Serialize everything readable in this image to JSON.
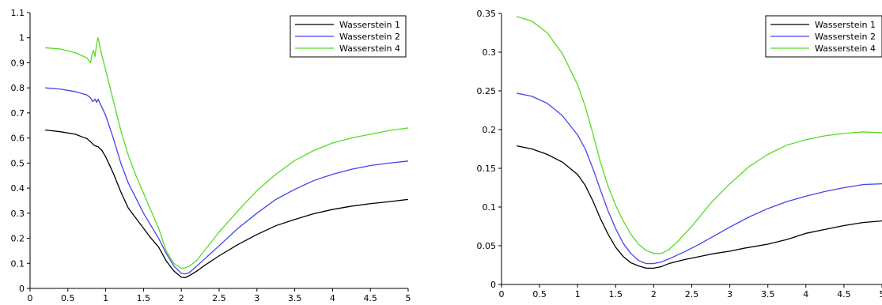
{
  "chart_data": [
    {
      "type": "line",
      "xlim": [
        0,
        5
      ],
      "ylim": [
        0,
        1.1
      ],
      "xticks": [
        "0",
        "0.5",
        "1",
        "1.5",
        "2",
        "2.5",
        "3",
        "3.5",
        "4",
        "4.5",
        "5"
      ],
      "yticks": [
        "0",
        "0.1",
        "0.2",
        "0.3",
        "0.4",
        "0.5",
        "0.6",
        "0.7",
        "0.8",
        "0.9",
        "1",
        "1.1"
      ],
      "grid": false,
      "legend_position": "top-right",
      "series": [
        {
          "name": "Wasserstein 1",
          "color": "#000000",
          "x": [
            0.2,
            0.4,
            0.6,
            0.7,
            0.75,
            0.8,
            0.85,
            0.9,
            0.95,
            1.0,
            1.1,
            1.2,
            1.3,
            1.4,
            1.5,
            1.6,
            1.7,
            1.8,
            1.9,
            2.0,
            2.05,
            2.1,
            2.2,
            2.3,
            2.5,
            2.75,
            3.0,
            3.25,
            3.5,
            3.75,
            4.0,
            4.25,
            4.5,
            4.75,
            5.0
          ],
          "y": [
            0.632,
            0.625,
            0.615,
            0.603,
            0.598,
            0.585,
            0.57,
            0.565,
            0.55,
            0.525,
            0.46,
            0.385,
            0.32,
            0.28,
            0.24,
            0.2,
            0.165,
            0.11,
            0.07,
            0.045,
            0.043,
            0.05,
            0.068,
            0.09,
            0.13,
            0.175,
            0.215,
            0.25,
            0.275,
            0.298,
            0.315,
            0.328,
            0.338,
            0.346,
            0.355
          ]
        },
        {
          "name": "Wasserstein 2",
          "color": "#4444ee",
          "x": [
            0.2,
            0.4,
            0.6,
            0.75,
            0.8,
            0.83,
            0.86,
            0.88,
            0.9,
            0.93,
            1.0,
            1.1,
            1.2,
            1.3,
            1.4,
            1.5,
            1.6,
            1.7,
            1.8,
            1.9,
            2.0,
            2.05,
            2.1,
            2.2,
            2.5,
            2.75,
            3.0,
            3.25,
            3.5,
            3.75,
            4.0,
            4.25,
            4.5,
            4.75,
            5.0
          ],
          "y": [
            0.8,
            0.795,
            0.785,
            0.772,
            0.76,
            0.745,
            0.755,
            0.742,
            0.755,
            0.735,
            0.69,
            0.6,
            0.5,
            0.42,
            0.36,
            0.3,
            0.25,
            0.2,
            0.14,
            0.09,
            0.06,
            0.058,
            0.062,
            0.088,
            0.17,
            0.24,
            0.3,
            0.355,
            0.395,
            0.43,
            0.455,
            0.475,
            0.49,
            0.5,
            0.508
          ]
        },
        {
          "name": "Wasserstein 4",
          "color": "#55dd22",
          "x": [
            0.2,
            0.4,
            0.6,
            0.75,
            0.8,
            0.82,
            0.84,
            0.86,
            0.88,
            0.9,
            0.92,
            0.95,
            1.0,
            1.1,
            1.2,
            1.3,
            1.4,
            1.5,
            1.6,
            1.7,
            1.8,
            1.9,
            2.0,
            2.05,
            2.1,
            2.2,
            2.5,
            2.75,
            3.0,
            3.25,
            3.5,
            3.75,
            4.0,
            4.25,
            4.5,
            4.75,
            5.0
          ],
          "y": [
            0.96,
            0.955,
            0.94,
            0.92,
            0.9,
            0.935,
            0.95,
            0.925,
            0.975,
            1.0,
            0.97,
            0.93,
            0.87,
            0.75,
            0.63,
            0.53,
            0.45,
            0.38,
            0.31,
            0.24,
            0.15,
            0.1,
            0.08,
            0.082,
            0.088,
            0.11,
            0.225,
            0.31,
            0.39,
            0.455,
            0.51,
            0.55,
            0.58,
            0.6,
            0.615,
            0.63,
            0.64
          ]
        }
      ]
    },
    {
      "type": "line",
      "xlim": [
        0,
        5
      ],
      "ylim": [
        0,
        0.35
      ],
      "xticks": [
        "0",
        "0.5",
        "1",
        "1.5",
        "2",
        "2.5",
        "3",
        "3.5",
        "4",
        "4.5",
        "5"
      ],
      "yticks": [
        "0",
        "0.05",
        "0.1",
        "0.15",
        "0.2",
        "0.25",
        "0.3",
        "0.35"
      ],
      "grid": false,
      "legend_position": "top-right",
      "series": [
        {
          "name": "Wasserstein 1",
          "color": "#000000",
          "x": [
            0.2,
            0.4,
            0.6,
            0.8,
            1.0,
            1.1,
            1.2,
            1.3,
            1.4,
            1.5,
            1.6,
            1.7,
            1.8,
            1.9,
            2.0,
            2.1,
            2.2,
            2.4,
            2.6,
            2.8,
            3.0,
            3.2,
            3.5,
            3.75,
            4.0,
            4.25,
            4.5,
            4.75,
            5.0
          ],
          "y": [
            0.179,
            0.175,
            0.168,
            0.158,
            0.142,
            0.128,
            0.108,
            0.085,
            0.065,
            0.048,
            0.036,
            0.028,
            0.024,
            0.021,
            0.021,
            0.023,
            0.027,
            0.032,
            0.036,
            0.04,
            0.043,
            0.047,
            0.052,
            0.058,
            0.066,
            0.071,
            0.076,
            0.08,
            0.082
          ]
        },
        {
          "name": "Wasserstein 2",
          "color": "#4444ee",
          "x": [
            0.2,
            0.4,
            0.6,
            0.8,
            1.0,
            1.1,
            1.2,
            1.3,
            1.4,
            1.5,
            1.6,
            1.7,
            1.8,
            1.9,
            2.0,
            2.1,
            2.2,
            2.4,
            2.6,
            2.8,
            3.0,
            3.25,
            3.5,
            3.75,
            4.0,
            4.25,
            4.5,
            4.75,
            5.0
          ],
          "y": [
            0.247,
            0.243,
            0.234,
            0.218,
            0.193,
            0.175,
            0.15,
            0.122,
            0.095,
            0.072,
            0.053,
            0.04,
            0.031,
            0.027,
            0.027,
            0.029,
            0.033,
            0.042,
            0.052,
            0.063,
            0.074,
            0.087,
            0.098,
            0.107,
            0.114,
            0.12,
            0.125,
            0.129,
            0.13
          ]
        },
        {
          "name": "Wasserstein 4",
          "color": "#55dd22",
          "x": [
            0.2,
            0.4,
            0.6,
            0.8,
            1.0,
            1.1,
            1.2,
            1.3,
            1.4,
            1.5,
            1.6,
            1.7,
            1.8,
            1.9,
            2.0,
            2.1,
            2.2,
            2.3,
            2.5,
            2.75,
            3.0,
            3.25,
            3.5,
            3.75,
            4.0,
            4.25,
            4.5,
            4.75,
            5.0
          ],
          "y": [
            0.346,
            0.34,
            0.325,
            0.298,
            0.258,
            0.23,
            0.195,
            0.158,
            0.127,
            0.102,
            0.082,
            0.065,
            0.052,
            0.044,
            0.04,
            0.04,
            0.045,
            0.054,
            0.075,
            0.105,
            0.13,
            0.152,
            0.168,
            0.18,
            0.187,
            0.192,
            0.195,
            0.197,
            0.196
          ]
        }
      ]
    }
  ]
}
